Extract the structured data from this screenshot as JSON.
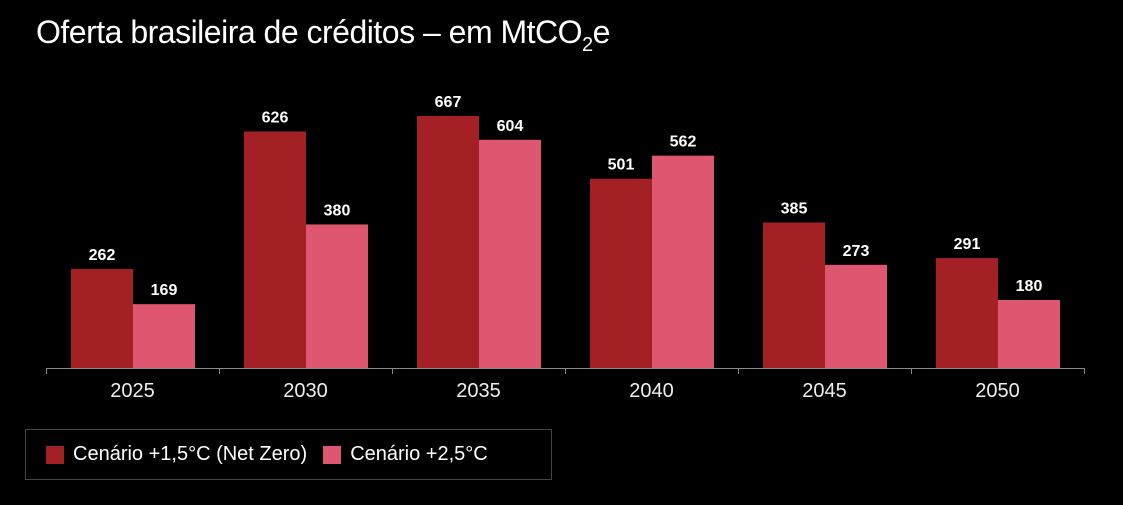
{
  "title": {
    "main": "Oferta brasileira de créditos – em MtCO",
    "sub": "2",
    "suffix": "e"
  },
  "chart_data": {
    "type": "bar",
    "title": "Oferta brasileira de créditos – em MtCO2e",
    "categories": [
      "2025",
      "2030",
      "2035",
      "2040",
      "2045",
      "2050"
    ],
    "series": [
      {
        "name": "Cenário +1,5°C (Net Zero)",
        "color": "#a32125",
        "values": [
          262,
          626,
          667,
          501,
          385,
          291
        ]
      },
      {
        "name": "Cenário +2,5°C",
        "color": "#de5670",
        "values": [
          169,
          380,
          604,
          562,
          273,
          180
        ]
      }
    ],
    "ylim": [
      0,
      700
    ],
    "grid": false,
    "legend": "bottom-left"
  }
}
